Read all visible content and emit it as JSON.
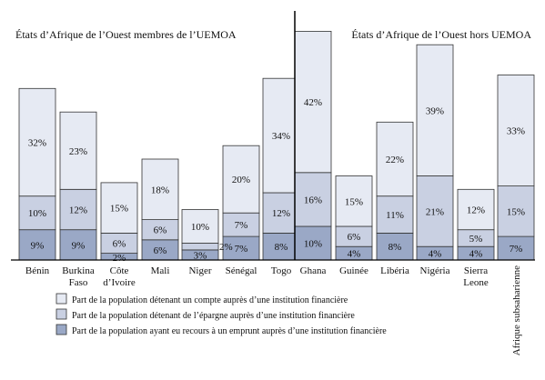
{
  "chart_data": {
    "type": "bar",
    "stacked": true,
    "groups": [
      {
        "title": "États d’Afrique de l’Ouest membres de l’UEMOA"
      },
      {
        "title": "États d’Afrique de l’Ouest hors UEMOA"
      }
    ],
    "categories": [
      {
        "name": "Bénin",
        "lines": [
          "Bénin"
        ],
        "group": 0
      },
      {
        "name": "Burkina Faso",
        "lines": [
          "Burkina",
          "Faso"
        ],
        "group": 0
      },
      {
        "name": "Côte d’Ivoire",
        "lines": [
          "Côte",
          "d’Ivoire"
        ],
        "group": 0
      },
      {
        "name": "Mali",
        "lines": [
          "Mali"
        ],
        "group": 0
      },
      {
        "name": "Niger",
        "lines": [
          "Niger"
        ],
        "group": 0
      },
      {
        "name": "Sénégal",
        "lines": [
          "Sénégal"
        ],
        "group": 0
      },
      {
        "name": "Togo",
        "lines": [
          "Togo"
        ],
        "group": 0
      },
      {
        "name": "Ghana",
        "lines": [
          "Ghana"
        ],
        "group": 1
      },
      {
        "name": "Guinée",
        "lines": [
          "Guinée"
        ],
        "group": 1
      },
      {
        "name": "Libéria",
        "lines": [
          "Libéria"
        ],
        "group": 1
      },
      {
        "name": "Nigéria",
        "lines": [
          "Nigéria"
        ],
        "group": 1
      },
      {
        "name": "Sierra Leone",
        "lines": [
          "Sierra",
          "Leone"
        ],
        "group": 1
      },
      {
        "name": "Afrique subsaharienne",
        "lines": [
          "Afrique subsaharienne"
        ],
        "group": 1,
        "rotated": true
      }
    ],
    "series": [
      {
        "name": "Part de la population ayant eu recours à un emprunt auprès d’une institution financière",
        "color": "#9aa8c6",
        "values": [
          9,
          9,
          2,
          6,
          3,
          7,
          8,
          10,
          4,
          8,
          4,
          4,
          7
        ],
        "labels": [
          "9%",
          "9%",
          "2%",
          "6%",
          "3%",
          "7%",
          "8%",
          "10%",
          "4%",
          "8%",
          "4%",
          "4%",
          "7%"
        ]
      },
      {
        "name": "Part de la population détenant de l’épargne auprès d’une institution financière",
        "color": "#c9d0e2",
        "values": [
          10,
          12,
          6,
          6,
          2,
          7,
          12,
          16,
          6,
          11,
          21,
          5,
          15
        ],
        "labels": [
          "10%",
          "12%",
          "6%",
          "6%",
          "2%",
          "7%",
          "12%",
          "16%",
          "6%",
          "11%",
          "21%",
          "5%",
          "15%"
        ]
      },
      {
        "name": "Part de la population détenant un compte auprès d’une institution financière",
        "color": "#e6eaf3",
        "values": [
          32,
          23,
          15,
          18,
          10,
          20,
          34,
          42,
          15,
          22,
          39,
          12,
          33
        ],
        "labels": [
          "32%",
          "23%",
          "15%",
          "18%",
          "10%",
          "20%",
          "34%",
          "42%",
          "15%",
          "22%",
          "39%",
          "12%",
          "33%"
        ]
      }
    ],
    "legend_order": [
      2,
      1,
      0
    ],
    "ylim": [
      0,
      80
    ],
    "grid": false,
    "legend_position": "bottom"
  }
}
